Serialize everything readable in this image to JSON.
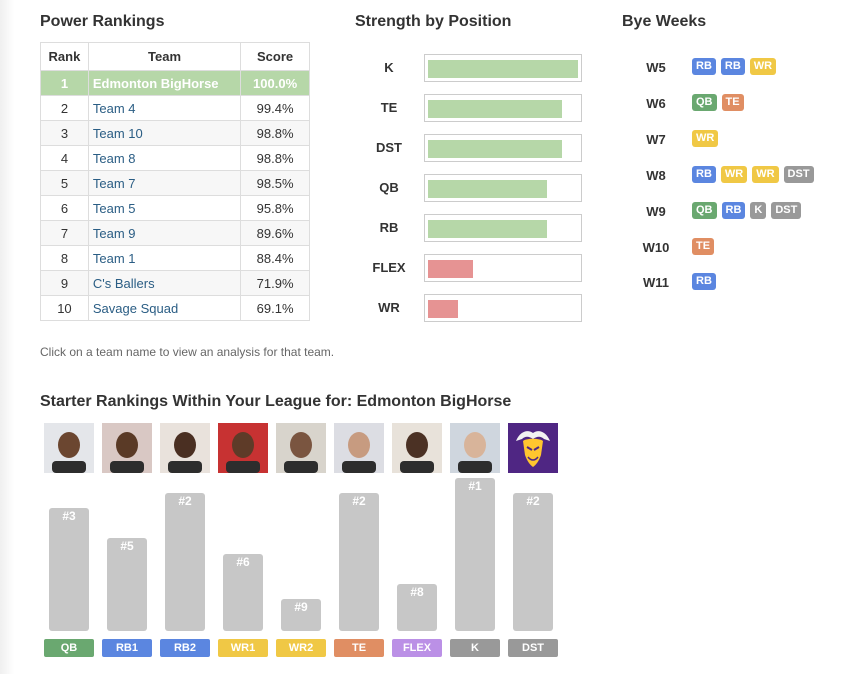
{
  "colors": {
    "highlight_row": "#b6d7a8",
    "strong_bar": "#b6d7a8",
    "weak_bar": "#e69393",
    "QB": "#6aa870",
    "RB": "#5b86e0",
    "WR": "#f0c845",
    "TE": "#e08e63",
    "K": "#999999",
    "DST": "#999999",
    "FLEX": "#bb90e6"
  },
  "power_rankings": {
    "title": "Power Rankings",
    "headers": {
      "rank": "Rank",
      "team": "Team",
      "score": "Score"
    },
    "rows": [
      {
        "rank": "1",
        "team": "Edmonton BigHorse",
        "score": "100.0%",
        "highlight": true
      },
      {
        "rank": "2",
        "team": "Team 4",
        "score": "99.4%"
      },
      {
        "rank": "3",
        "team": "Team 10",
        "score": "98.8%"
      },
      {
        "rank": "4",
        "team": "Team 8",
        "score": "98.8%"
      },
      {
        "rank": "5",
        "team": "Team 7",
        "score": "98.5%"
      },
      {
        "rank": "6",
        "team": "Team 5",
        "score": "95.8%"
      },
      {
        "rank": "7",
        "team": "Team 9",
        "score": "89.6%"
      },
      {
        "rank": "8",
        "team": "Team 1",
        "score": "88.4%"
      },
      {
        "rank": "9",
        "team": "C's Ballers",
        "score": "71.9%"
      },
      {
        "rank": "10",
        "team": "Savage Squad",
        "score": "69.1%"
      }
    ],
    "hint": "Click on a team name to view an analysis for that team."
  },
  "strength": {
    "title": "Strength by Position",
    "positions": [
      {
        "label": "K",
        "fill": 1.0,
        "color": "strong"
      },
      {
        "label": "TE",
        "fill": 0.89,
        "color": "strong"
      },
      {
        "label": "DST",
        "fill": 0.89,
        "color": "strong"
      },
      {
        "label": "QB",
        "fill": 0.79,
        "color": "strong"
      },
      {
        "label": "RB",
        "fill": 0.79,
        "color": "strong"
      },
      {
        "label": "FLEX",
        "fill": 0.3,
        "color": "weak"
      },
      {
        "label": "WR",
        "fill": 0.2,
        "color": "weak"
      }
    ]
  },
  "bye_weeks": {
    "title": "Bye Weeks",
    "weeks": [
      {
        "week": "W5",
        "positions": [
          "RB",
          "RB",
          "WR"
        ]
      },
      {
        "week": "W6",
        "positions": [
          "QB",
          "TE"
        ]
      },
      {
        "week": "W7",
        "positions": [
          "WR"
        ]
      },
      {
        "week": "W8",
        "positions": [
          "RB",
          "WR",
          "WR",
          "DST"
        ]
      },
      {
        "week": "W9",
        "positions": [
          "QB",
          "RB",
          "K",
          "DST"
        ]
      },
      {
        "week": "W10",
        "positions": [
          "TE"
        ]
      },
      {
        "week": "W11",
        "positions": [
          "RB"
        ]
      }
    ]
  },
  "starters": {
    "title": "Starter Rankings Within Your League for: Edmonton BigHorse",
    "items": [
      {
        "slot": "QB",
        "type": "QB",
        "rank": "#3",
        "rank_num": 3,
        "photo": "player-photo"
      },
      {
        "slot": "RB1",
        "type": "RB",
        "rank": "#5",
        "rank_num": 5,
        "photo": "player-photo"
      },
      {
        "slot": "RB2",
        "type": "RB",
        "rank": "#2",
        "rank_num": 2,
        "photo": "player-photo"
      },
      {
        "slot": "WR1",
        "type": "WR",
        "rank": "#6",
        "rank_num": 6,
        "photo": "player-photo"
      },
      {
        "slot": "WR2",
        "type": "WR",
        "rank": "#9",
        "rank_num": 9,
        "photo": "player-photo"
      },
      {
        "slot": "TE",
        "type": "TE",
        "rank": "#2",
        "rank_num": 2,
        "photo": "player-photo"
      },
      {
        "slot": "FLEX",
        "type": "FLEX",
        "rank": "#8",
        "rank_num": 8,
        "photo": "player-photo"
      },
      {
        "slot": "K",
        "type": "K",
        "rank": "#1",
        "rank_num": 1,
        "photo": "player-photo"
      },
      {
        "slot": "DST",
        "type": "DST",
        "rank": "#2",
        "rank_num": 2,
        "photo": "team-logo"
      }
    ]
  }
}
